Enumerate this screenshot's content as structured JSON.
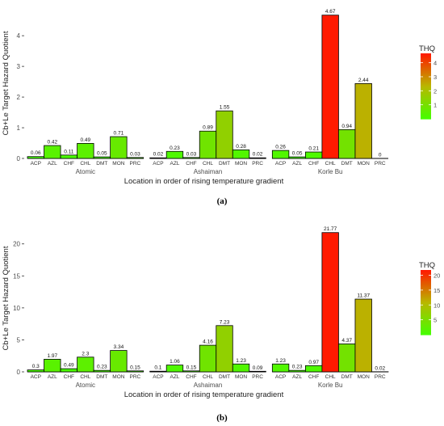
{
  "chart_data": [
    {
      "type": "bar",
      "panel_label": "(a)",
      "xlabel": "Location in order of rising temperature gradient",
      "ylabel": "Cb+Le Target Hazard Quotient",
      "ylim": [
        0,
        4.9
      ],
      "yticks": [
        0,
        1,
        2,
        3,
        4
      ],
      "legend": {
        "title": "THQ",
        "position": "right",
        "ticks": [
          1,
          2,
          3,
          4
        ],
        "min": 0,
        "max": 4.67
      },
      "colors": {
        "low": "#44ff00",
        "mid": "#b8b800",
        "high": "#ff1a00"
      },
      "groups": [
        {
          "name": "Atomic",
          "categories": [
            "ACP",
            "AZL",
            "CHF",
            "CHL",
            "DMT",
            "MON",
            "PRC"
          ],
          "values": [
            0.06,
            0.42,
            0.11,
            0.49,
            0.05,
            0.71,
            0.03
          ],
          "labels": [
            "0.06",
            "0.42",
            "0.11",
            "0.49",
            "0.05",
            "0.71",
            "0.03"
          ]
        },
        {
          "name": "Ashaiman",
          "categories": [
            "ACP",
            "AZL",
            "CHF",
            "CHL",
            "DMT",
            "MON",
            "PRC"
          ],
          "values": [
            0.02,
            0.23,
            0.03,
            0.89,
            1.55,
            0.28,
            0.02
          ],
          "labels": [
            "0.02",
            "0.23",
            "0.03",
            "0.89",
            "1.55",
            "0.28",
            "0.02"
          ]
        },
        {
          "name": "Korle Bu",
          "categories": [
            "ACP",
            "AZL",
            "CHF",
            "CHL",
            "DMT",
            "MON",
            "PRC"
          ],
          "values": [
            0.26,
            0.05,
            0.21,
            4.67,
            0.94,
            2.44,
            0
          ],
          "labels": [
            "0.26",
            "0.05",
            "0.21",
            "4.67",
            "0.94",
            "2.44",
            "0"
          ]
        }
      ]
    },
    {
      "type": "bar",
      "panel_label": "(b)",
      "xlabel": "Location in order of rising temperature gradient",
      "ylabel": "Cb+Le Target Hazard Quotient",
      "ylim": [
        0,
        23
      ],
      "yticks": [
        0,
        5,
        10,
        15,
        20
      ],
      "legend": {
        "title": "THQ",
        "position": "right",
        "ticks": [
          5,
          10,
          15,
          20
        ],
        "min": 0,
        "max": 21.77
      },
      "colors": {
        "low": "#44ff00",
        "mid": "#b8b800",
        "high": "#ff1a00"
      },
      "groups": [
        {
          "name": "Atomic",
          "categories": [
            "ACP",
            "AZL",
            "CHF",
            "CHL",
            "DMT",
            "MON",
            "PRC"
          ],
          "values": [
            0.3,
            1.97,
            0.49,
            2.3,
            0.23,
            3.34,
            0.15
          ],
          "labels": [
            "0.3",
            "1.97",
            "0.49",
            "2.3",
            "0.23",
            "3.34",
            "0.15"
          ]
        },
        {
          "name": "Ashaiman",
          "categories": [
            "ACP",
            "AZL",
            "CHF",
            "CHL",
            "DMT",
            "MON",
            "PRC"
          ],
          "values": [
            0.1,
            1.06,
            0.15,
            4.16,
            7.23,
            1.23,
            0.09
          ],
          "labels": [
            "0.1",
            "1.06",
            "0.15",
            "4.16",
            "7.23",
            "1.23",
            "0.09"
          ]
        },
        {
          "name": "Korle Bu",
          "categories": [
            "ACP",
            "AZL",
            "CHF",
            "CHL",
            "DMT",
            "MON",
            "PRC"
          ],
          "values": [
            1.23,
            0.23,
            0.97,
            21.77,
            4.37,
            11.37,
            0.02
          ],
          "labels": [
            "1.23",
            "0.23",
            "0.97",
            "21.77",
            "4.37",
            "11.37",
            "0.02"
          ]
        }
      ]
    }
  ]
}
